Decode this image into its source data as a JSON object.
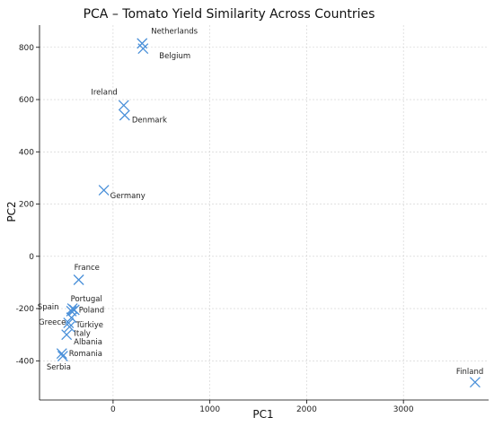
{
  "chart_data": {
    "type": "scatter",
    "title": "PCA – Tomato Yield Similarity Across Countries",
    "xlabel": "PC1",
    "ylabel": "PC2",
    "xlim": [
      -760,
      3880
    ],
    "ylim": [
      -550,
      885
    ],
    "xticks": [
      0,
      1000,
      2000,
      3000
    ],
    "yticks": [
      -400,
      -200,
      0,
      200,
      400,
      600,
      800
    ],
    "grid": true,
    "marker": "x",
    "color": "#4a90d9",
    "points": [
      {
        "label": "Netherlands",
        "x": 300,
        "y": 815
      },
      {
        "label": "Belgium",
        "x": 310,
        "y": 795
      },
      {
        "label": "Ireland",
        "x": 110,
        "y": 578
      },
      {
        "label": "Denmark",
        "x": 120,
        "y": 540
      },
      {
        "label": "Germany",
        "x": -95,
        "y": 253
      },
      {
        "label": "France",
        "x": -355,
        "y": -90
      },
      {
        "label": "Portugal",
        "x": -420,
        "y": -200
      },
      {
        "label": "Spain",
        "x": -430,
        "y": -210
      },
      {
        "label": "Poland",
        "x": -400,
        "y": -205
      },
      {
        "label": "Türkiye",
        "x": -430,
        "y": -235
      },
      {
        "label": "Greece",
        "x": -460,
        "y": -255
      },
      {
        "label": "Italy",
        "x": -450,
        "y": -270
      },
      {
        "label": "Albania",
        "x": -480,
        "y": -300
      },
      {
        "label": "Romania",
        "x": -530,
        "y": -372
      },
      {
        "label": "Serbia",
        "x": -520,
        "y": -382
      },
      {
        "label": "Finland",
        "x": 3740,
        "y": -482
      }
    ]
  }
}
